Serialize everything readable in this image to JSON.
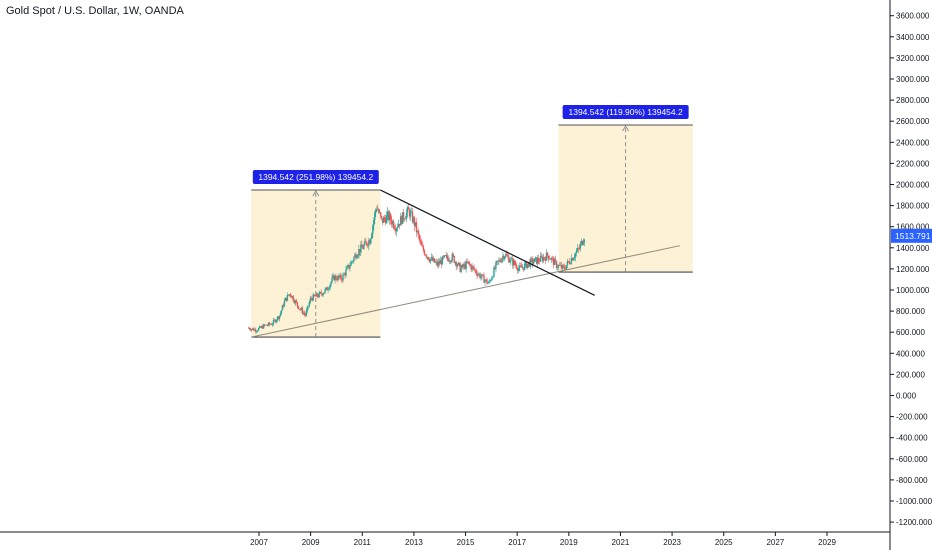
{
  "chart_data": {
    "type": "line",
    "title": "Gold Spot / U.S. Dollar, 1W, OANDA",
    "ylim": [
      -1300,
      3700
    ],
    "xlim": [
      2005.5,
      2030
    ],
    "y_ticks": [
      3600,
      3400,
      3200,
      3000,
      2800,
      2600,
      2400,
      2200,
      2000,
      1800,
      1600,
      1400,
      1200,
      1000,
      800,
      600,
      400,
      200,
      0,
      -200,
      -400,
      -600,
      -800,
      -1000,
      -1200
    ],
    "y_tick_labels": [
      "3600.000",
      "3400.000",
      "3200.000",
      "3000.000",
      "2800.000",
      "2600.000",
      "2400.000",
      "2200.000",
      "2000.000",
      "1800.000",
      "1600.000",
      "1400.000",
      "1200.000",
      "1000.000",
      "800.000",
      "600.000",
      "400.000",
      "200.000",
      "0.000",
      "-200.000",
      "-400.000",
      "-600.000",
      "-800.000",
      "-1000.000",
      "-1200.000"
    ],
    "x_ticks": [
      2007,
      2009,
      2011,
      2013,
      2015,
      2017,
      2019,
      2021,
      2023,
      2025,
      2027,
      2029
    ],
    "x_tick_labels": [
      "2007",
      "2009",
      "2011",
      "2013",
      "2015",
      "2017",
      "2019",
      "2021",
      "2023",
      "2025",
      "2027",
      "2029"
    ],
    "last_price": "1513.791",
    "series": [
      {
        "x": [
          2006.6,
          2006.9,
          2007.2,
          2007.5,
          2007.8,
          2008.0,
          2008.2,
          2008.5,
          2008.8,
          2009.0,
          2009.3,
          2009.6,
          2009.9,
          2010.2,
          2010.5,
          2010.8,
          2011.0,
          2011.3,
          2011.55,
          2011.75,
          2012.0,
          2012.3,
          2012.6,
          2012.8,
          2013.0,
          2013.3,
          2013.6,
          2013.9,
          2014.2,
          2014.5,
          2014.8,
          2015.1,
          2015.5,
          2015.9,
          2016.2,
          2016.5,
          2016.8,
          2017.1,
          2017.5,
          2017.9,
          2018.2,
          2018.5,
          2018.8,
          2019.1,
          2019.4,
          2019.6
        ],
        "values": [
          640,
          620,
          660,
          680,
          760,
          900,
          970,
          850,
          760,
          920,
          950,
          1000,
          1120,
          1110,
          1230,
          1360,
          1400,
          1480,
          1800,
          1650,
          1700,
          1600,
          1700,
          1750,
          1650,
          1400,
          1300,
          1240,
          1300,
          1310,
          1200,
          1250,
          1150,
          1060,
          1240,
          1340,
          1270,
          1200,
          1260,
          1290,
          1330,
          1240,
          1200,
          1300,
          1390,
          1513
        ]
      }
    ],
    "annotations": [
      {
        "label": "1394.542 (251.98%) 139454.2",
        "x0": 2006.7,
        "x1": 2011.7,
        "y0": 554,
        "y1": 1948
      },
      {
        "label": "1394.542 (119.90%) 139454.2",
        "x0": 2018.6,
        "x1": 2023.8,
        "y0": 1170,
        "y1": 2564
      }
    ],
    "trendlines": [
      {
        "x0": 2006.7,
        "y0": 554,
        "x1": 2023.3,
        "y1": 1420
      },
      {
        "x0": 2011.7,
        "y0": 1948,
        "x1": 2020.0,
        "y1": 950
      }
    ],
    "colors": {
      "box_fill": "#fdf1d6",
      "label_bg": "#1e22e8",
      "candle_up": "#26a69a",
      "candle_down": "#ef5350",
      "trendline": "#131722",
      "price_tag": "#2962ff"
    }
  }
}
